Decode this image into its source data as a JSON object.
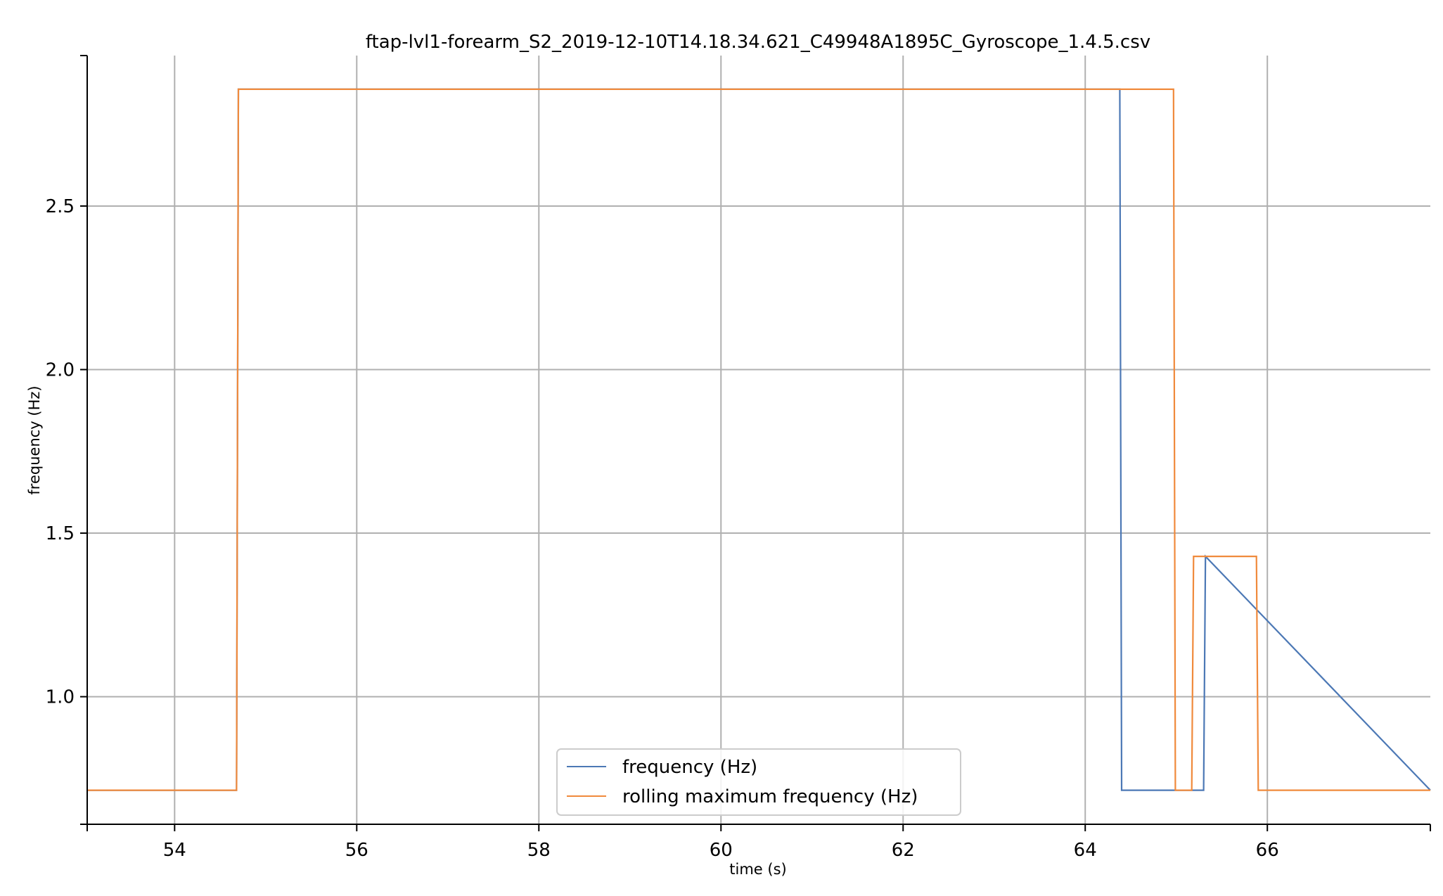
{
  "chart_data": {
    "type": "line",
    "title": "ftap-lvl1-forearm_S2_2019-12-10T14.18.34.621_C49948A1895C_Gyroscope_1.4.5.csv",
    "xlabel": "time (s)",
    "ylabel": "frequency (Hz)",
    "xlim": [
      53.04,
      67.79
    ],
    "ylim": [
      0.61,
      2.96
    ],
    "xticks": [
      54,
      56,
      58,
      60,
      62,
      64,
      66
    ],
    "xtick_labels": [
      "54",
      "56",
      "58",
      "60",
      "62",
      "64",
      "66"
    ],
    "yticks": [
      1.0,
      1.5,
      2.0,
      2.5
    ],
    "ytick_labels": [
      "1.0",
      "1.5",
      "2.0",
      "2.5"
    ],
    "grid": true,
    "legend_position": "bottom-center",
    "series": [
      {
        "name": "frequency (Hz)",
        "color": "#4c78b5",
        "x": [
          53.04,
          54.68,
          54.7,
          64.38,
          64.4,
          65.3,
          65.32,
          67.79
        ],
        "y": [
          0.714,
          0.714,
          2.857,
          2.857,
          0.714,
          0.714,
          1.429,
          0.714
        ]
      },
      {
        "name": "rolling maximum frequency (Hz)",
        "color": "#f08a3c",
        "x": [
          53.04,
          54.68,
          54.7,
          64.97,
          64.99,
          65.17,
          65.19,
          65.88,
          65.9,
          67.79
        ],
        "y": [
          0.714,
          0.714,
          2.857,
          2.857,
          0.714,
          0.714,
          1.429,
          1.429,
          0.714,
          0.714
        ]
      }
    ]
  }
}
